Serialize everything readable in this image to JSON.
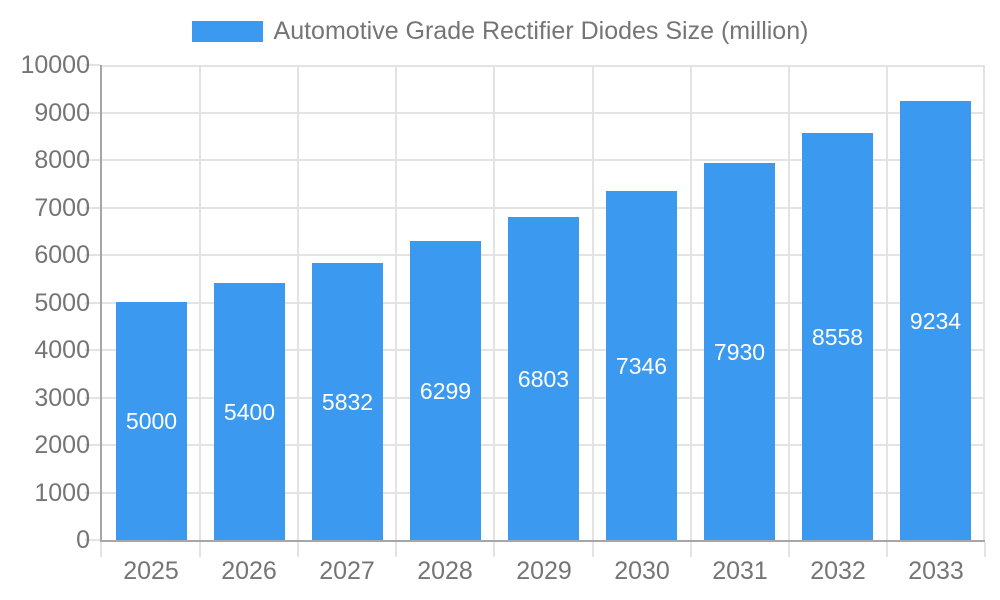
{
  "legend": {
    "label": "Automotive Grade Rectifier Diodes Size (million)"
  },
  "chart_data": {
    "type": "bar",
    "title": "Automotive Grade Rectifier Diodes Size (million)",
    "categories": [
      "2025",
      "2026",
      "2027",
      "2028",
      "2029",
      "2030",
      "2031",
      "2032",
      "2033"
    ],
    "series": [
      {
        "name": "Automotive Grade Rectifier Diodes Size (million)",
        "values": [
          5000,
          5400,
          5832,
          6299,
          6803,
          7346,
          7930,
          8558,
          9234
        ]
      }
    ],
    "xlabel": "",
    "ylabel": "",
    "ylim": [
      0,
      10000
    ],
    "ytick_step": 1000,
    "grid": true,
    "legend_position": "top",
    "bar_labels_visible": true
  },
  "colors": {
    "bar": "#3b99f0",
    "grid": "#e3e3e3",
    "axis": "#a6a6a6",
    "text": "#757575",
    "bar_label": "#ffffff",
    "background": "#ffffff"
  }
}
